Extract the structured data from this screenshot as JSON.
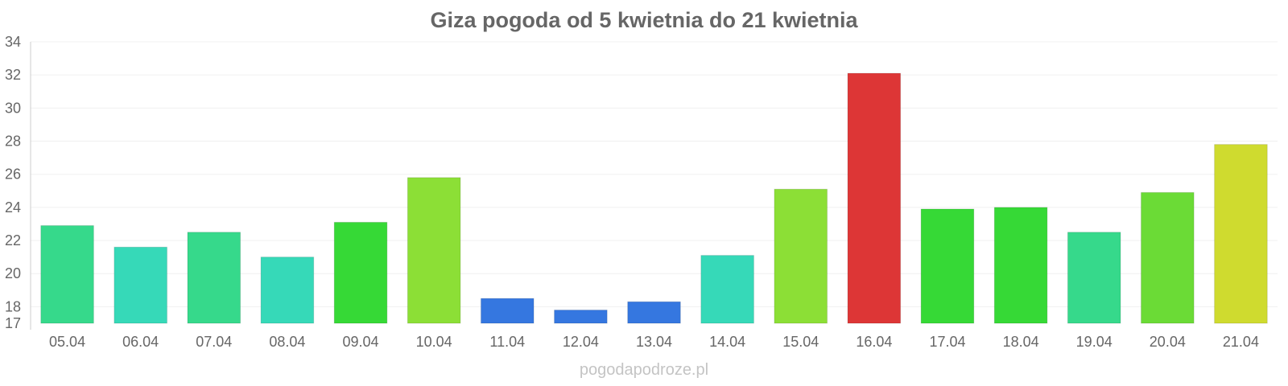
{
  "chart_data": {
    "type": "bar",
    "title": "Giza pogoda od 5 kwietnia do 21 kwietnia",
    "xlabel": "",
    "ylabel": "",
    "categories": [
      "05.04",
      "06.04",
      "07.04",
      "08.04",
      "09.04",
      "10.04",
      "11.04",
      "12.04",
      "13.04",
      "14.04",
      "15.04",
      "16.04",
      "17.04",
      "18.04",
      "19.04",
      "20.04",
      "21.04"
    ],
    "values": [
      22.9,
      21.6,
      22.5,
      21.0,
      23.1,
      25.8,
      18.5,
      17.8,
      18.3,
      21.1,
      25.1,
      32.1,
      23.9,
      24.0,
      22.5,
      24.9,
      27.8
    ],
    "colors": [
      "#36d98b",
      "#36d9b8",
      "#36d98b",
      "#36d9b8",
      "#36d936",
      "#8cdf36",
      "#3577e0",
      "#3577e0",
      "#3577e0",
      "#36d9b8",
      "#8cdf36",
      "#dd3636",
      "#36d936",
      "#36d936",
      "#36d98b",
      "#6bdb36",
      "#cfdb2f"
    ],
    "ylim": [
      17,
      34
    ],
    "yticks": [
      17,
      18,
      20,
      22,
      24,
      26,
      28,
      30,
      32,
      34
    ],
    "grid": true,
    "legend": "none"
  },
  "watermark": "pogodapodroze.pl"
}
